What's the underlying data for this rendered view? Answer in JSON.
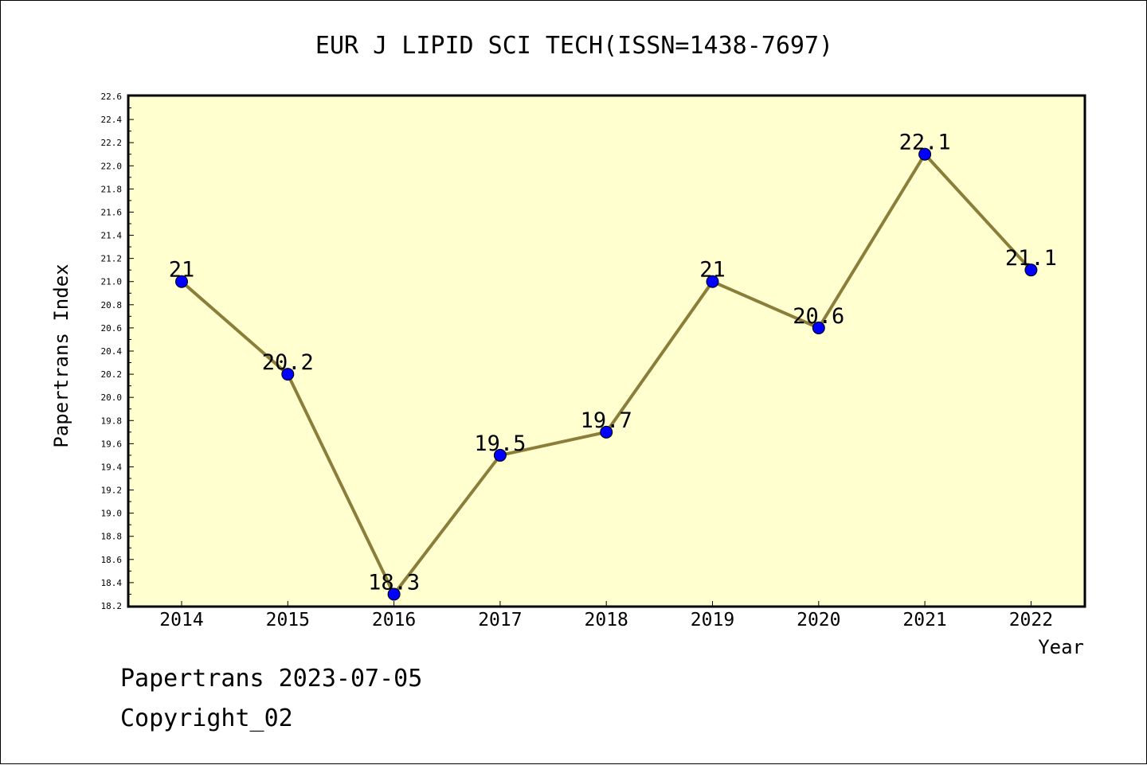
{
  "chart_data": {
    "type": "line",
    "title": "EUR J LIPID SCI TECH(ISSN=1438-7697)",
    "xlabel": "Year",
    "ylabel": "Papertrans Index",
    "categories": [
      "2014",
      "2015",
      "2016",
      "2017",
      "2018",
      "2019",
      "2020",
      "2021",
      "2022"
    ],
    "series": [
      {
        "values": [
          21,
          20.2,
          18.3,
          19.5,
          19.7,
          21,
          20.6,
          22.1,
          21.1
        ],
        "data_labels": [
          "21",
          "20.2",
          "18.3",
          "19.5",
          "19.7",
          "21",
          "20.6",
          "22.1",
          "21.1"
        ]
      }
    ],
    "ylim": [
      18.2,
      22.6
    ],
    "yticks": [
      "18.2",
      "18.4",
      "18.6",
      "18.8",
      "19.0",
      "19.2",
      "19.4",
      "19.6",
      "19.8",
      "20.0",
      "20.2",
      "20.4",
      "20.6",
      "20.8",
      "21.0",
      "21.2",
      "21.4",
      "21.6",
      "21.8",
      "22.0",
      "22.2",
      "22.4",
      "22.6"
    ],
    "grid": false,
    "colors": {
      "plot_background": "#ffffd0",
      "line": "#8b7d3a",
      "marker": "#0000ff"
    }
  },
  "footer": {
    "line1": "Papertrans 2023-07-05",
    "line2": "Copyright_02"
  }
}
